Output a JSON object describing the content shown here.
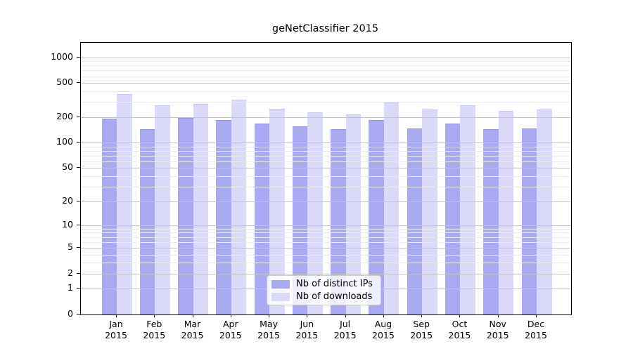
{
  "title": "geNetClassifier 2015",
  "chart_data": {
    "type": "bar",
    "title": "geNetClassifier 2015",
    "categories": [
      "Jan",
      "Feb",
      "Mar",
      "Apr",
      "May",
      "Jun",
      "Jul",
      "Aug",
      "Sep",
      "Oct",
      "Nov",
      "Dec"
    ],
    "year_label": "2015",
    "series": [
      {
        "name": "Nb of distinct IPs",
        "color": "#a9a9f1",
        "edge_color": "#9494e4",
        "values": [
          191,
          145,
          197,
          185,
          167,
          156,
          145,
          186,
          147,
          167,
          143,
          147
        ]
      },
      {
        "name": "Nb of downloads",
        "color": "#dadaf8",
        "edge_color": "#c6c6ee",
        "values": [
          373,
          275,
          285,
          318,
          249,
          227,
          214,
          297,
          246,
          275,
          235,
          243
        ]
      }
    ],
    "xlabel": "",
    "ylabel": "",
    "yscale": "log1p",
    "ylim": [
      0,
      1475
    ],
    "yticks": [
      1000,
      500,
      200,
      100,
      50,
      20,
      10,
      5,
      2,
      1,
      0
    ],
    "grid": "on",
    "legend_position": "lower center"
  },
  "colors": {
    "background": "#ffffff",
    "frame": "#000000",
    "grid_major": "#c4c4c4",
    "grid_minor": "#ebebeb",
    "legend_border": "#cccccc",
    "text": "#000000"
  }
}
